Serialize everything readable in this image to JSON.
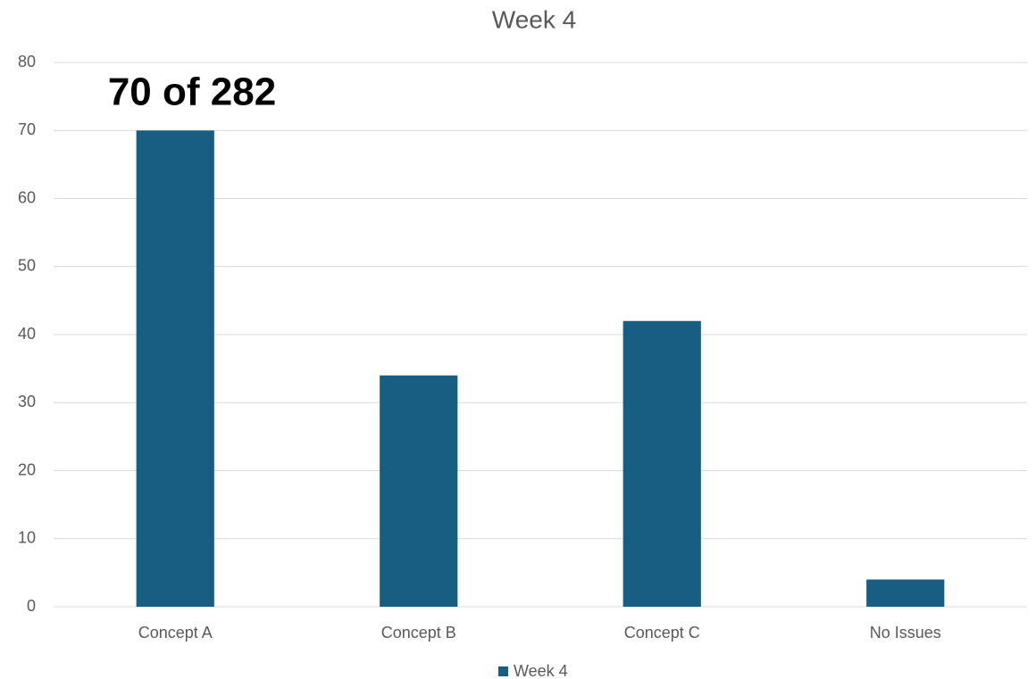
{
  "chart_data": {
    "type": "bar",
    "title": "Week 4",
    "annotation": "70 of 282",
    "categories": [
      "Concept A",
      "Concept B",
      "Concept C",
      "No Issues"
    ],
    "series": [
      {
        "name": "Week 4",
        "color": "#175e82",
        "values": [
          70,
          34,
          42,
          4
        ]
      }
    ],
    "ylim": [
      0,
      80
    ],
    "yticks": [
      0,
      10,
      20,
      30,
      40,
      50,
      60,
      70,
      80
    ],
    "grid": true,
    "legend": "bottom"
  }
}
